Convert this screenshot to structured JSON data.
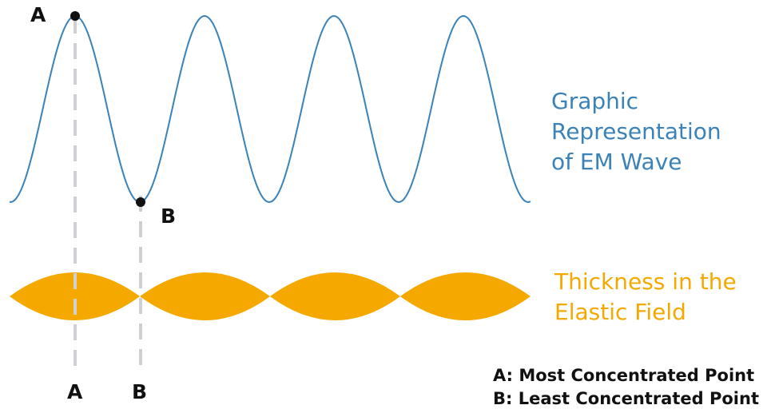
{
  "colors": {
    "wave": "#3a82b8",
    "field": "#f5a800",
    "guide": "#cfcfd6",
    "point": "#111111"
  },
  "labels": {
    "point_a": "A",
    "point_b": "B",
    "axis_a": "A",
    "axis_b": "B",
    "wave_title": [
      "Graphic",
      "Representation",
      "of EM Wave"
    ],
    "field_title": [
      "Thickness in the",
      "Elastic Field"
    ]
  },
  "legend": {
    "a": "A: Most Concentrated Point",
    "b": "B: Least Concentrated Point"
  },
  "wave": {
    "cycles": 4
  },
  "field": {
    "lobes": 4
  }
}
